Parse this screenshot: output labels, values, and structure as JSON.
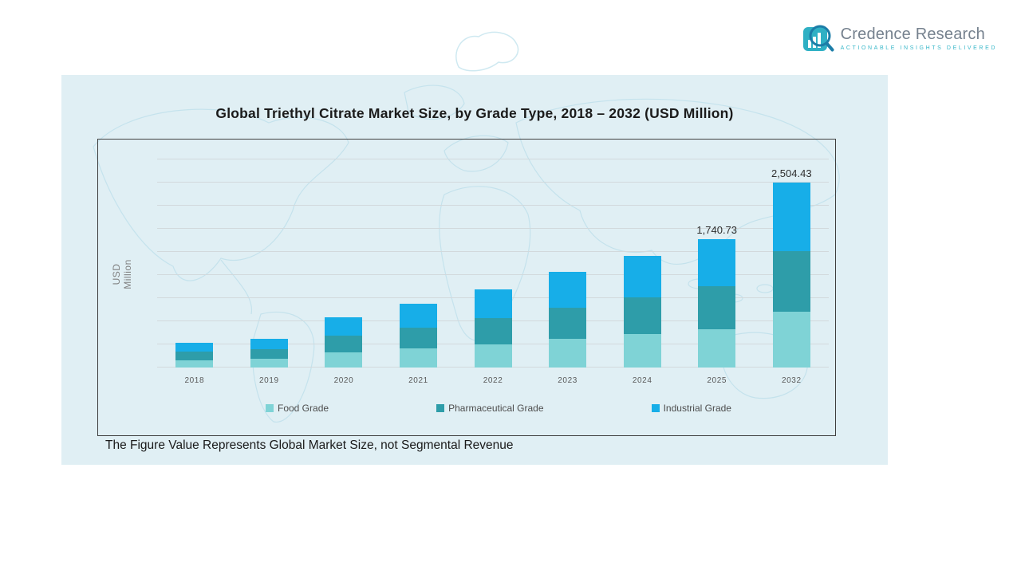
{
  "logo": {
    "name": "Credence Research",
    "tagline": "Actionable Insights Delivered",
    "icon": "bar-chart-magnifier-icon",
    "brand_color": "#2fb0c4"
  },
  "chart_data": {
    "type": "bar",
    "stacked": true,
    "title": "Global Triethyl Citrate Market Size, by Grade Type, 2018 – 2032 (USD Million)",
    "y_axis_label": "USD Million",
    "xlabel": "",
    "categories": [
      "2018",
      "2019",
      "2020",
      "2021",
      "2022",
      "2023",
      "2024",
      "2025",
      "2032"
    ],
    "series": [
      {
        "name": "Food Grade",
        "color": "#7fd3d6",
        "values": [
          100,
          118,
          204,
          259,
          318,
          388,
          454,
          522,
          751
        ]
      },
      {
        "name": "Pharmaceutical Grade",
        "color": "#2e9da9",
        "values": [
          111,
          130,
          224,
          285,
          350,
          427,
          500,
          574,
          826
        ]
      },
      {
        "name": "Industrial Grade",
        "color": "#17aee8",
        "values": [
          124,
          147,
          252,
          321,
          392,
          480,
          561,
          644.73,
          927.43
        ]
      }
    ],
    "totals": [
      335,
      395,
      680,
      865,
      1060,
      1295,
      1515,
      1740.73,
      2504.43
    ],
    "bar_labels": {
      "2025": "1,740.73",
      "2032": "2,504.43"
    },
    "legend_position": "bottom",
    "gridlines": "horizontal",
    "footnote": "The Figure Value Represents Global Market Size, not Segmental Revenue"
  }
}
